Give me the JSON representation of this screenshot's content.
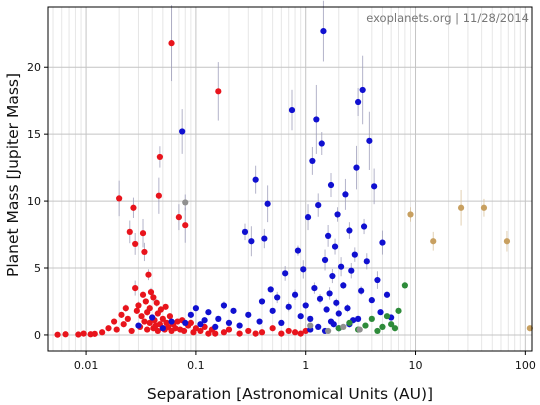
{
  "chart_data": {
    "type": "scatter",
    "watermark": "exoplanets.org | 11/28/2014",
    "xlabel": "Separation [Astronomical Units (AU)]",
    "ylabel": "Planet Mass [Jupiter Mass]",
    "x_scale": "log",
    "xlim": [
      0.0045,
      115
    ],
    "ylim": [
      -1.2,
      24.5
    ],
    "x_ticks": [
      {
        "value": 0.01,
        "label": "0.01"
      },
      {
        "value": 0.1,
        "label": "0.1"
      },
      {
        "value": 1,
        "label": "1"
      },
      {
        "value": 10,
        "label": "10"
      },
      {
        "value": 100,
        "label": "100"
      }
    ],
    "y_ticks": [
      {
        "value": 0,
        "label": "0"
      },
      {
        "value": 5,
        "label": "5"
      },
      {
        "value": 10,
        "label": "10"
      },
      {
        "value": 15,
        "label": "15"
      },
      {
        "value": 20,
        "label": "20"
      }
    ],
    "grid": true,
    "colors": {
      "red": "#e8141c",
      "blue": "#1010d0",
      "green": "#2e8b3a",
      "tan": "#c8a060",
      "gray": "#909090",
      "errorbar": "#9a9ab8"
    },
    "series": [
      {
        "color": "red",
        "points": [
          [
            0.0055,
            0.02
          ],
          [
            0.0065,
            0.05
          ],
          [
            0.0085,
            0.03
          ],
          [
            0.0095,
            0.1
          ],
          [
            0.011,
            0.05
          ],
          [
            0.012,
            0.08
          ],
          [
            0.014,
            0.2
          ],
          [
            0.016,
            0.5
          ],
          [
            0.018,
            1.0
          ],
          [
            0.019,
            0.4
          ],
          [
            0.02,
            10.2
          ],
          [
            0.021,
            1.5
          ],
          [
            0.022,
            0.8
          ],
          [
            0.023,
            2.0
          ],
          [
            0.024,
            1.2
          ],
          [
            0.025,
            7.7
          ],
          [
            0.026,
            0.3
          ],
          [
            0.027,
            9.5
          ],
          [
            0.028,
            6.8
          ],
          [
            0.028,
            3.5
          ],
          [
            0.029,
            1.8
          ],
          [
            0.03,
            2.2
          ],
          [
            0.031,
            0.6
          ],
          [
            0.032,
            1.4
          ],
          [
            0.033,
            7.6
          ],
          [
            0.033,
            3.0
          ],
          [
            0.034,
            6.2
          ],
          [
            0.034,
            1.0
          ],
          [
            0.035,
            2.5
          ],
          [
            0.036,
            0.4
          ],
          [
            0.036,
            1.7
          ],
          [
            0.037,
            4.5
          ],
          [
            0.038,
            2.0
          ],
          [
            0.038,
            0.9
          ],
          [
            0.039,
            3.2
          ],
          [
            0.04,
            1.3
          ],
          [
            0.041,
            0.5
          ],
          [
            0.041,
            2.8
          ],
          [
            0.042,
            1.1
          ],
          [
            0.043,
            0.7
          ],
          [
            0.044,
            2.4
          ],
          [
            0.045,
            0.3
          ],
          [
            0.045,
            1.6
          ],
          [
            0.046,
            10.4
          ],
          [
            0.047,
            13.3
          ],
          [
            0.047,
            0.8
          ],
          [
            0.048,
            1.9
          ],
          [
            0.05,
            0.5
          ],
          [
            0.05,
            1.2
          ],
          [
            0.052,
            0.4
          ],
          [
            0.053,
            2.1
          ],
          [
            0.054,
            0.9
          ],
          [
            0.056,
            0.6
          ],
          [
            0.058,
            1.4
          ],
          [
            0.06,
            21.8
          ],
          [
            0.06,
            0.3
          ],
          [
            0.062,
            0.8
          ],
          [
            0.065,
            0.5
          ],
          [
            0.068,
            1.0
          ],
          [
            0.07,
            8.8
          ],
          [
            0.072,
            0.4
          ],
          [
            0.075,
            1.1
          ],
          [
            0.078,
            0.3
          ],
          [
            0.08,
            8.2
          ],
          [
            0.085,
            0.7
          ],
          [
            0.09,
            0.9
          ],
          [
            0.095,
            0.2
          ],
          [
            0.1,
            0.5
          ],
          [
            0.11,
            0.3
          ],
          [
            0.12,
            0.6
          ],
          [
            0.13,
            0.1
          ],
          [
            0.14,
            0.4
          ],
          [
            0.15,
            0.1
          ],
          [
            0.16,
            18.2
          ],
          [
            0.18,
            0.2
          ],
          [
            0.2,
            0.4
          ],
          [
            0.25,
            0.1
          ],
          [
            0.3,
            0.3
          ],
          [
            0.35,
            0.1
          ],
          [
            0.4,
            0.2
          ],
          [
            0.5,
            0.5
          ],
          [
            0.6,
            0.1
          ],
          [
            0.7,
            0.3
          ],
          [
            0.8,
            0.2
          ],
          [
            0.9,
            0.1
          ],
          [
            1.0,
            0.3
          ]
        ]
      },
      {
        "color": "blue",
        "points": [
          [
            0.03,
            0.7
          ],
          [
            0.04,
            1.3
          ],
          [
            0.05,
            0.5
          ],
          [
            0.06,
            1.0
          ],
          [
            0.075,
            15.2
          ],
          [
            0.08,
            0.9
          ],
          [
            0.09,
            1.5
          ],
          [
            0.1,
            2.0
          ],
          [
            0.11,
            0.8
          ],
          [
            0.12,
            1.1
          ],
          [
            0.13,
            1.7
          ],
          [
            0.15,
            0.6
          ],
          [
            0.16,
            1.2
          ],
          [
            0.18,
            2.2
          ],
          [
            0.2,
            0.9
          ],
          [
            0.22,
            1.8
          ],
          [
            0.25,
            0.7
          ],
          [
            0.28,
            7.7
          ],
          [
            0.3,
            1.5
          ],
          [
            0.32,
            7.0
          ],
          [
            0.35,
            11.6
          ],
          [
            0.38,
            1.0
          ],
          [
            0.4,
            2.5
          ],
          [
            0.42,
            7.2
          ],
          [
            0.45,
            9.8
          ],
          [
            0.48,
            3.4
          ],
          [
            0.5,
            1.8
          ],
          [
            0.55,
            2.8
          ],
          [
            0.6,
            0.9
          ],
          [
            0.65,
            4.6
          ],
          [
            0.7,
            2.1
          ],
          [
            0.75,
            16.8
          ],
          [
            0.8,
            3.0
          ],
          [
            0.85,
            6.3
          ],
          [
            0.9,
            1.4
          ],
          [
            0.95,
            4.9
          ],
          [
            1.0,
            2.2
          ],
          [
            1.05,
            8.8
          ],
          [
            1.1,
            1.2
          ],
          [
            1.15,
            13.0
          ],
          [
            1.2,
            3.5
          ],
          [
            1.25,
            16.1
          ],
          [
            1.3,
            9.7
          ],
          [
            1.35,
            2.7
          ],
          [
            1.4,
            14.3
          ],
          [
            1.45,
            22.7
          ],
          [
            1.5,
            5.6
          ],
          [
            1.55,
            1.9
          ],
          [
            1.6,
            7.4
          ],
          [
            1.65,
            3.1
          ],
          [
            1.7,
            11.2
          ],
          [
            1.75,
            4.4
          ],
          [
            1.8,
            0.8
          ],
          [
            1.85,
            6.6
          ],
          [
            1.9,
            2.4
          ],
          [
            1.95,
            9.0
          ],
          [
            2.0,
            1.6
          ],
          [
            2.1,
            5.1
          ],
          [
            2.2,
            3.7
          ],
          [
            2.3,
            10.5
          ],
          [
            2.4,
            2.0
          ],
          [
            2.5,
            7.8
          ],
          [
            2.6,
            4.8
          ],
          [
            2.7,
            1.1
          ],
          [
            2.8,
            6.0
          ],
          [
            2.9,
            12.5
          ],
          [
            3.0,
            17.4
          ],
          [
            3.2,
            3.3
          ],
          [
            3.3,
            18.3
          ],
          [
            3.4,
            8.1
          ],
          [
            3.6,
            5.5
          ],
          [
            3.8,
            14.5
          ],
          [
            4.0,
            2.6
          ],
          [
            4.2,
            11.1
          ],
          [
            4.5,
            4.1
          ],
          [
            4.8,
            1.7
          ],
          [
            5.0,
            6.9
          ],
          [
            5.5,
            3.0
          ],
          [
            6.0,
            1.3
          ],
          [
            1.1,
            0.4
          ],
          [
            1.3,
            0.6
          ],
          [
            1.5,
            0.3
          ],
          [
            1.7,
            1.0
          ],
          [
            2.0,
            0.5
          ],
          [
            2.5,
            0.8
          ],
          [
            3.0,
            1.2
          ]
        ]
      },
      {
        "color": "green",
        "points": [
          [
            2.0,
            0.5
          ],
          [
            2.5,
            0.9
          ],
          [
            3.0,
            0.4
          ],
          [
            3.5,
            0.7
          ],
          [
            4.0,
            1.2
          ],
          [
            4.5,
            0.3
          ],
          [
            5.0,
            0.6
          ],
          [
            5.5,
            1.4
          ],
          [
            6.0,
            0.8
          ],
          [
            6.5,
            0.5
          ],
          [
            7.0,
            1.8
          ],
          [
            8.0,
            3.7
          ]
        ]
      },
      {
        "color": "tan",
        "points": [
          [
            9.0,
            9.0
          ],
          [
            14.5,
            7.0
          ],
          [
            26.0,
            9.5
          ],
          [
            42.0,
            9.5
          ],
          [
            68.0,
            7.0
          ],
          [
            110.0,
            0.5
          ]
        ]
      },
      {
        "color": "gray",
        "points": [
          [
            0.08,
            9.9
          ],
          [
            1.1,
            0.7
          ],
          [
            1.6,
            0.3
          ],
          [
            2.2,
            0.6
          ],
          [
            3.1,
            0.4
          ]
        ]
      }
    ]
  }
}
